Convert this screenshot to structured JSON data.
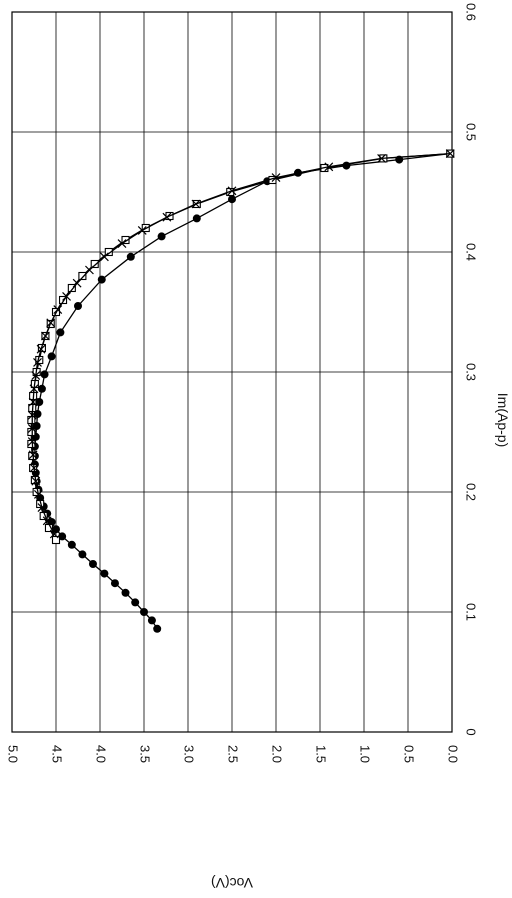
{
  "chart_data": {
    "type": "scatter",
    "orientation": "rotated-90",
    "xlabel": "Im(Ap-p)",
    "ylabel": "Voc(V)",
    "xlim": [
      0,
      0.6
    ],
    "ylim": [
      0,
      5.0
    ],
    "x_ticks": [
      "0",
      "0.1",
      "0.2",
      "0.3",
      "0.4",
      "0.5",
      "0.6"
    ],
    "y_ticks": [
      "0.0",
      "0.5",
      "1.0",
      "1.5",
      "2.0",
      "2.5",
      "3.0",
      "3.5",
      "4.0",
      "4.5",
      "5.0"
    ],
    "grid": true,
    "series": [
      {
        "marker": "filled-circle",
        "color": "#000000",
        "points": [
          [
            0.086,
            3.35
          ],
          [
            0.093,
            3.41
          ],
          [
            0.1,
            3.5
          ],
          [
            0.108,
            3.6
          ],
          [
            0.116,
            3.71
          ],
          [
            0.124,
            3.83
          ],
          [
            0.132,
            3.95
          ],
          [
            0.14,
            4.08
          ],
          [
            0.148,
            4.2
          ],
          [
            0.156,
            4.32
          ],
          [
            0.163,
            4.43
          ],
          [
            0.169,
            4.5
          ],
          [
            0.175,
            4.55
          ],
          [
            0.182,
            4.6
          ],
          [
            0.188,
            4.64
          ],
          [
            0.195,
            4.68
          ],
          [
            0.202,
            4.7
          ],
          [
            0.209,
            4.72
          ],
          [
            0.216,
            4.73
          ],
          [
            0.223,
            4.74
          ],
          [
            0.23,
            4.74
          ],
          [
            0.238,
            4.74
          ],
          [
            0.246,
            4.73
          ],
          [
            0.255,
            4.72
          ],
          [
            0.265,
            4.71
          ],
          [
            0.275,
            4.69
          ],
          [
            0.286,
            4.66
          ],
          [
            0.298,
            4.63
          ],
          [
            0.313,
            4.55
          ],
          [
            0.333,
            4.45
          ],
          [
            0.355,
            4.25
          ],
          [
            0.377,
            3.98
          ],
          [
            0.396,
            3.65
          ],
          [
            0.413,
            3.3
          ],
          [
            0.428,
            2.9
          ],
          [
            0.444,
            2.5
          ],
          [
            0.459,
            2.1
          ],
          [
            0.466,
            1.75
          ],
          [
            0.472,
            1.2
          ],
          [
            0.477,
            0.6
          ],
          [
            0.482,
            0.02
          ]
        ]
      },
      {
        "marker": "open-square",
        "color": "#000000",
        "points": [
          [
            0.16,
            4.5
          ],
          [
            0.17,
            4.58
          ],
          [
            0.18,
            4.64
          ],
          [
            0.19,
            4.68
          ],
          [
            0.2,
            4.72
          ],
          [
            0.21,
            4.74
          ],
          [
            0.22,
            4.76
          ],
          [
            0.23,
            4.77
          ],
          [
            0.24,
            4.78
          ],
          [
            0.25,
            4.78
          ],
          [
            0.26,
            4.78
          ],
          [
            0.27,
            4.77
          ],
          [
            0.28,
            4.76
          ],
          [
            0.29,
            4.74
          ],
          [
            0.3,
            4.72
          ],
          [
            0.31,
            4.69
          ],
          [
            0.32,
            4.66
          ],
          [
            0.33,
            4.62
          ],
          [
            0.34,
            4.56
          ],
          [
            0.35,
            4.5
          ],
          [
            0.36,
            4.42
          ],
          [
            0.37,
            4.32
          ],
          [
            0.38,
            4.2
          ],
          [
            0.39,
            4.06
          ],
          [
            0.4,
            3.9
          ],
          [
            0.41,
            3.71
          ],
          [
            0.42,
            3.48
          ],
          [
            0.43,
            3.21
          ],
          [
            0.44,
            2.9
          ],
          [
            0.45,
            2.52
          ],
          [
            0.46,
            2.04
          ],
          [
            0.47,
            1.45
          ],
          [
            0.478,
            0.78
          ],
          [
            0.482,
            0.02
          ]
        ]
      },
      {
        "marker": "x",
        "color": "#000000",
        "points": [
          [
            0.165,
            4.52
          ],
          [
            0.176,
            4.6
          ],
          [
            0.187,
            4.66
          ],
          [
            0.198,
            4.7
          ],
          [
            0.209,
            4.73
          ],
          [
            0.22,
            4.75
          ],
          [
            0.231,
            4.76
          ],
          [
            0.242,
            4.77
          ],
          [
            0.253,
            4.77
          ],
          [
            0.264,
            4.77
          ],
          [
            0.275,
            4.76
          ],
          [
            0.286,
            4.75
          ],
          [
            0.297,
            4.73
          ],
          [
            0.308,
            4.71
          ],
          [
            0.319,
            4.67
          ],
          [
            0.33,
            4.62
          ],
          [
            0.341,
            4.56
          ],
          [
            0.352,
            4.48
          ],
          [
            0.363,
            4.38
          ],
          [
            0.374,
            4.26
          ],
          [
            0.385,
            4.12
          ],
          [
            0.396,
            3.95
          ],
          [
            0.407,
            3.75
          ],
          [
            0.418,
            3.52
          ],
          [
            0.429,
            3.24
          ],
          [
            0.44,
            2.91
          ],
          [
            0.451,
            2.5
          ],
          [
            0.462,
            2.0
          ],
          [
            0.471,
            1.4
          ],
          [
            0.478,
            0.8
          ],
          [
            0.482,
            0.02
          ]
        ]
      }
    ]
  }
}
